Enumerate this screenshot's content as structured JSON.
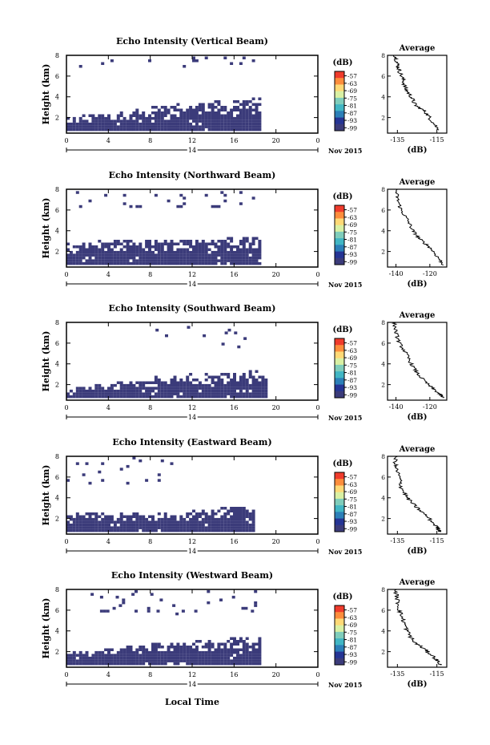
{
  "figure": {
    "x_axis_title": "Local Time",
    "date_label": "Nov 2015",
    "day_label": "14",
    "colorbar_unit": "(dB)",
    "colorbar_ticks": [
      "-57",
      "-63",
      "-69",
      "-75",
      "-81",
      "-87",
      "-93",
      "-99"
    ],
    "colorbar_colors": [
      "#ef3b2c",
      "#fd8d3c",
      "#fed976",
      "#d9f0a3",
      "#7fcdbb",
      "#41b6c4",
      "#2c7fb8",
      "#253494",
      "#3b3b7a"
    ]
  },
  "chart_data": [
    {
      "type": "heatmap",
      "title": "Echo Intensity (Vertical Beam)",
      "ylabel": "Height (km)",
      "xlim": [
        0,
        24
      ],
      "ylim": [
        0.5,
        8
      ],
      "x_ticks": [
        "0",
        "4",
        "8",
        "12",
        "16",
        "20",
        "0"
      ],
      "y_ticks": [
        "2",
        "4",
        "6",
        "8"
      ],
      "echo_regions": [
        {
          "layer": "lower",
          "t_start": 0,
          "t_end": 18.5,
          "h_start": 0.7,
          "top_profile": [
            [
              0,
              2.0
            ],
            [
              4,
              2.2
            ],
            [
              8,
              2.9
            ],
            [
              12,
              3.3
            ],
            [
              16,
              3.5
            ],
            [
              18,
              3.8
            ]
          ]
        },
        {
          "layer": "upper sparse",
          "t_start": 0,
          "t_end": 18,
          "h_start": 6.8,
          "h_end": 7.8
        }
      ],
      "profile": {
        "title": "Average",
        "xlabel": "(dB)",
        "x_ticks": [
          "-135",
          "-115"
        ],
        "xlim": [
          -140,
          -110
        ],
        "points": [
          [
            -136,
            8
          ],
          [
            -135,
            7.2
          ],
          [
            -134,
            6.5
          ],
          [
            -132,
            5.6
          ],
          [
            -131,
            4.8
          ],
          [
            -128,
            4.0
          ],
          [
            -126,
            3.2
          ],
          [
            -121,
            2.6
          ],
          [
            -118,
            1.8
          ],
          [
            -114,
            0.8
          ]
        ]
      }
    },
    {
      "type": "heatmap",
      "title": "Echo Intensity (Northward Beam)",
      "ylabel": "Height (km)",
      "xlim": [
        0,
        24
      ],
      "ylim": [
        0.5,
        8
      ],
      "x_ticks": [
        "0",
        "4",
        "8",
        "12",
        "16",
        "20",
        "0"
      ],
      "y_ticks": [
        "2",
        "4",
        "6",
        "8"
      ],
      "echo_regions": [
        {
          "layer": "lower",
          "t_start": 0,
          "t_end": 18.5,
          "h_start": 0.7,
          "top_profile": [
            [
              0,
              2.6
            ],
            [
              4,
              3.0
            ],
            [
              8,
              3.0
            ],
            [
              12,
              3.0
            ],
            [
              16,
              3.2
            ],
            [
              18,
              3.4
            ]
          ]
        },
        {
          "layer": "upper sparse",
          "t_start": 0,
          "t_end": 18,
          "h_start": 6.2,
          "h_end": 7.8
        }
      ],
      "profile": {
        "title": "Average",
        "xlabel": "(dB)",
        "x_ticks": [
          "-140",
          "-120"
        ],
        "xlim": [
          -145,
          -110
        ],
        "points": [
          [
            -140,
            8
          ],
          [
            -139,
            7.0
          ],
          [
            -137,
            6.0
          ],
          [
            -133,
            5.0
          ],
          [
            -130,
            4.0
          ],
          [
            -126,
            3.2
          ],
          [
            -120,
            2.4
          ],
          [
            -115,
            1.4
          ],
          [
            -112,
            0.7
          ]
        ]
      }
    },
    {
      "type": "heatmap",
      "title": "Echo Intensity (Southward Beam)",
      "ylabel": "Height (km)",
      "xlim": [
        0,
        24
      ],
      "ylim": [
        0.5,
        8
      ],
      "x_ticks": [
        "0",
        "4",
        "8",
        "12",
        "16",
        "20",
        "0"
      ],
      "y_ticks": [
        "2",
        "4",
        "6",
        "8"
      ],
      "echo_regions": [
        {
          "layer": "lower",
          "t_start": 0,
          "t_end": 19,
          "h_start": 0.7,
          "top_profile": [
            [
              0,
              1.6
            ],
            [
              4,
              2.0
            ],
            [
              8,
              2.6
            ],
            [
              12,
              3.0
            ],
            [
              16,
              3.1
            ],
            [
              19,
              3.2
            ]
          ]
        },
        {
          "layer": "upper sparse",
          "t_start": 7,
          "t_end": 17,
          "h_start": 5.5,
          "h_end": 7.8
        }
      ],
      "profile": {
        "title": "Average",
        "xlabel": "(dB)",
        "x_ticks": [
          "-140",
          "-120"
        ],
        "xlim": [
          -145,
          -110
        ],
        "points": [
          [
            -141,
            8
          ],
          [
            -140,
            7.0
          ],
          [
            -138,
            6.0
          ],
          [
            -134,
            5.0
          ],
          [
            -131,
            4.0
          ],
          [
            -127,
            3.0
          ],
          [
            -121,
            2.0
          ],
          [
            -115,
            1.2
          ],
          [
            -112,
            0.7
          ]
        ]
      }
    },
    {
      "type": "heatmap",
      "title": "Echo Intensity (Eastward Beam)",
      "ylabel": "Height (km)",
      "xlim": [
        0,
        24
      ],
      "ylim": [
        0.5,
        8
      ],
      "x_ticks": [
        "0",
        "4",
        "8",
        "12",
        "16",
        "20",
        "0"
      ],
      "y_ticks": [
        "2",
        "4",
        "6",
        "8"
      ],
      "echo_regions": [
        {
          "layer": "lower",
          "t_start": 0,
          "t_end": 18,
          "h_start": 0.7,
          "top_profile": [
            [
              0,
              2.3
            ],
            [
              4,
              2.4
            ],
            [
              8,
              2.3
            ],
            [
              12,
              2.6
            ],
            [
              16,
              3.0
            ],
            [
              18,
              3.0
            ]
          ]
        },
        {
          "layer": "upper sparse",
          "t_start": 0,
          "t_end": 10,
          "h_start": 5.0,
          "h_end": 7.8
        }
      ],
      "profile": {
        "title": "Average",
        "xlabel": "(dB)",
        "x_ticks": [
          "-135",
          "-115"
        ],
        "xlim": [
          -140,
          -110
        ],
        "points": [
          [
            -136,
            8
          ],
          [
            -136,
            7.0
          ],
          [
            -134,
            6.0
          ],
          [
            -133,
            5.0
          ],
          [
            -130,
            4.0
          ],
          [
            -126,
            3.2
          ],
          [
            -120,
            2.2
          ],
          [
            -115,
            1.2
          ],
          [
            -113,
            0.7
          ]
        ]
      }
    },
    {
      "type": "heatmap",
      "title": "Echo Intensity (Westward Beam)",
      "ylabel": "Height (km)",
      "xlim": [
        0,
        24
      ],
      "ylim": [
        0.5,
        8
      ],
      "x_ticks": [
        "0",
        "4",
        "8",
        "12",
        "16",
        "20",
        "0"
      ],
      "y_ticks": [
        "2",
        "4",
        "6",
        "8"
      ],
      "echo_regions": [
        {
          "layer": "lower",
          "t_start": 0,
          "t_end": 18.5,
          "h_start": 0.7,
          "top_profile": [
            [
              0,
              1.8
            ],
            [
              4,
              2.2
            ],
            [
              8,
              2.6
            ],
            [
              12,
              2.9
            ],
            [
              16,
              3.2
            ],
            [
              18,
              3.3
            ]
          ]
        },
        {
          "layer": "upper sparse",
          "t_start": 2,
          "t_end": 18,
          "h_start": 5.5,
          "h_end": 7.8
        }
      ],
      "profile": {
        "title": "Average",
        "xlabel": "(dB)",
        "x_ticks": [
          "-135",
          "-115"
        ],
        "xlim": [
          -140,
          -110
        ],
        "points": [
          [
            -136,
            8
          ],
          [
            -135,
            7.0
          ],
          [
            -134,
            6.0
          ],
          [
            -132,
            5.0
          ],
          [
            -130,
            4.0
          ],
          [
            -127,
            3.0
          ],
          [
            -121,
            2.2
          ],
          [
            -116,
            1.4
          ],
          [
            -113,
            0.7
          ]
        ]
      }
    }
  ]
}
